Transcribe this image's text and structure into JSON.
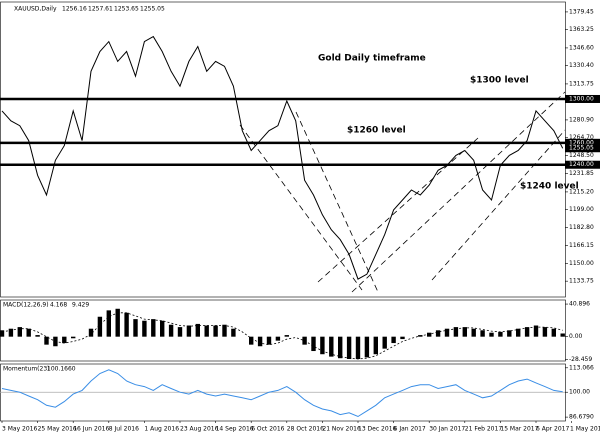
{
  "chart_data": [
    {
      "type": "line",
      "symbol": "XAUUSD,Daily",
      "ohlc": [
        1256.16,
        1257.61,
        1253.65,
        1255.05
      ],
      "color": "#000000",
      "values": [
        1289.1,
        1280.1,
        1275.6,
        1262.0,
        1230.4,
        1212.4,
        1244.0,
        1257.5,
        1289.1,
        1262.0,
        1325.3,
        1343.3,
        1352.4,
        1334.3,
        1343.3,
        1320.8,
        1352.4,
        1356.9,
        1343.3,
        1325.3,
        1311.7,
        1334.3,
        1347.9,
        1325.3,
        1334.3,
        1329.8,
        1311.7,
        1271.1,
        1253.0,
        1262.0,
        1271.1,
        1275.6,
        1298.2,
        1280.1,
        1225.9,
        1212.4,
        1194.3,
        1180.7,
        1171.7,
        1158.2,
        1135.6,
        1140.1,
        1158.2,
        1176.2,
        1198.8,
        1207.8,
        1216.9,
        1212.4,
        1221.4,
        1234.9,
        1239.5,
        1248.5,
        1253.0,
        1244.0,
        1216.9,
        1207.8,
        1239.5,
        1248.5,
        1253.0,
        1262.0,
        1289.1,
        1280.1,
        1271.1,
        1255.0,
        null
      ],
      "ylim": [
        1119.3,
        1388.5
      ],
      "yticks": [
        1379.45,
        1363.25,
        {
          "value": 1346.6,
          "label": "1346.60"
        },
        {
          "value": 1330.4,
          "label": "1330.40"
        },
        1313.75,
        {
          "value": 1280.9,
          "label": "1280.90"
        },
        {
          "value": 1264.7,
          "label": "1264.70"
        },
        {
          "value": 1248.5,
          "label": "1248.50"
        },
        1231.85,
        {
          "value": 1215.2,
          "label": "1215.20"
        },
        {
          "value": 1199,
          "label": "1199.00"
        },
        {
          "value": 1182.8,
          "label": "1182.80"
        },
        1166.15,
        {
          "value": 1150,
          "label": "1150.00"
        },
        1133.75
      ],
      "levels": [
        {
          "value": 1300,
          "label": "1300.00"
        },
        {
          "value": 1260,
          "label": "1260.00"
        },
        {
          "value": 1240,
          "label": "1240.00"
        }
      ],
      "last_price": 1255.05,
      "annotations": [
        "Gold Daily timeframe",
        "$1300 level",
        "$1260 level",
        "$1240 level"
      ]
    },
    {
      "type": "macd",
      "indicator": "MACD(12,26,9)",
      "readout": [
        4.168,
        9.429
      ],
      "color": "#000000",
      "values": [
        8,
        10,
        12,
        10,
        2,
        -10,
        -12,
        -8,
        -2,
        0,
        10,
        25,
        33,
        35,
        30,
        22,
        20,
        22,
        20,
        15,
        12,
        14,
        16,
        14,
        14,
        15,
        10,
        0,
        -10,
        -12,
        -10,
        -5,
        2,
        0,
        -10,
        -18,
        -22,
        -25,
        -27,
        -28,
        -28,
        -26,
        -22,
        -15,
        -8,
        -3,
        0,
        2,
        5,
        8,
        10,
        12,
        12,
        10,
        8,
        5,
        6,
        8,
        10,
        12,
        14,
        12,
        10,
        4,
        null
      ],
      "signal": [
        6,
        8,
        10,
        10,
        6,
        0,
        -6,
        -8,
        -6,
        -3,
        3,
        15,
        25,
        30,
        30,
        26,
        22,
        21,
        20,
        17,
        14,
        13,
        14,
        14,
        14,
        14,
        12,
        6,
        -2,
        -8,
        -10,
        -8,
        -3,
        -1,
        -5,
        -12,
        -18,
        -22,
        -25,
        -27,
        -28,
        -27,
        -24,
        -18,
        -12,
        -6,
        -2,
        1,
        3,
        6,
        8,
        10,
        11,
        11,
        9,
        7,
        6,
        7,
        9,
        11,
        12,
        12,
        11,
        8,
        null
      ],
      "ylim": [
        -30.5,
        46
      ],
      "yticks": [
        40.896,
        {
          "value": 0,
          "label": "0.00"
        },
        -28.459
      ]
    },
    {
      "type": "line",
      "indicator": "Momentum(23)",
      "readout": [
        {
          "value": 100.166,
          "label": "100.1660"
        }
      ],
      "color": "#3a8ee6",
      "categories": [
        "3 May 2016",
        null,
        null,
        null,
        "25 May 2016",
        null,
        null,
        null,
        "16 Jun 2016",
        null,
        null,
        null,
        "8 Jul 2016",
        null,
        null,
        null,
        "1 Aug 2016",
        null,
        null,
        null,
        "23 Aug 2016",
        null,
        null,
        null,
        "14 Sep 2016",
        null,
        null,
        null,
        "6 Oct 2016",
        null,
        null,
        null,
        "28 Oct 2016",
        null,
        null,
        null,
        "21 Nov 2016",
        null,
        null,
        null,
        "13 Dec 2016",
        null,
        null,
        null,
        "6 Jan 2017",
        null,
        null,
        null,
        "30 Jan 2017",
        null,
        null,
        null,
        "21 Feb 2017",
        null,
        null,
        null,
        "15 Mar 2017",
        null,
        null,
        null,
        "6 Apr 2017",
        null,
        null,
        null,
        "1 May 2017"
      ],
      "values": [
        102,
        101,
        100,
        98,
        96,
        93,
        92,
        95,
        99,
        101,
        106,
        110,
        112,
        110,
        106,
        104,
        103,
        101,
        104,
        102,
        100,
        99,
        101,
        99,
        98,
        99,
        98,
        97,
        96,
        98,
        100,
        101,
        103,
        100,
        96,
        93,
        91,
        90,
        88,
        89,
        87,
        90,
        93,
        97,
        99,
        101,
        103,
        104,
        104,
        102,
        103,
        104,
        101,
        99,
        97,
        98,
        101,
        104,
        106,
        107,
        105,
        103,
        101,
        100.2,
        null
      ],
      "ylim": [
        84.6,
        115.1
      ],
      "yticks": [
        113.066,
        {
          "value": 100,
          "label": "100.00"
        },
        {
          "value": 86.679,
          "label": "86.6790"
        }
      ],
      "reference_line": 100
    }
  ]
}
